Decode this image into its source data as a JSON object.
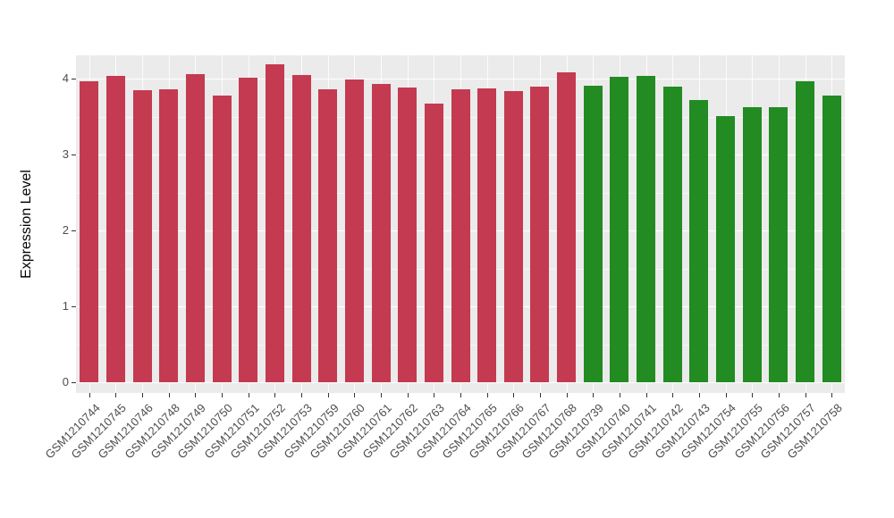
{
  "colors": {
    "red": "#C43A50",
    "green": "#228B22",
    "panel_bg": "#EBEBEB",
    "grid": "#FFFFFF",
    "tick_text": "#4D4D4D"
  },
  "chart_data": {
    "type": "bar",
    "title": "",
    "xlabel": "",
    "ylabel": "Expression Level",
    "ylim": [
      0,
      4.3
    ],
    "yticks": [
      0,
      1,
      2,
      3,
      4
    ],
    "yticks_minor": [
      0.5,
      1.5,
      2.5,
      3.5
    ],
    "grid": "on",
    "legend": "none",
    "categories": [
      "GSM1210744",
      "GSM1210745",
      "GSM1210746",
      "GSM1210748",
      "GSM1210749",
      "GSM1210750",
      "GSM1210751",
      "GSM1210752",
      "GSM1210753",
      "GSM1210759",
      "GSM1210760",
      "GSM1210761",
      "GSM1210762",
      "GSM1210763",
      "GSM1210764",
      "GSM1210765",
      "GSM1210766",
      "GSM1210767",
      "GSM1210768",
      "GSM1210739",
      "GSM1210740",
      "GSM1210741",
      "GSM1210742",
      "GSM1210743",
      "GSM1210754",
      "GSM1210755",
      "GSM1210756",
      "GSM1210757",
      "GSM1210758"
    ],
    "values": [
      3.96,
      4.04,
      3.85,
      3.86,
      4.06,
      3.78,
      4.01,
      4.19,
      4.05,
      3.86,
      3.99,
      3.93,
      3.88,
      3.67,
      3.86,
      3.87,
      3.83,
      3.89,
      4.08,
      3.91,
      4.02,
      4.04,
      3.89,
      3.72,
      3.51,
      3.62,
      3.62,
      3.96,
      3.78
    ],
    "bar_groups": [
      "red",
      "red",
      "red",
      "red",
      "red",
      "red",
      "red",
      "red",
      "red",
      "red",
      "red",
      "red",
      "red",
      "red",
      "red",
      "red",
      "red",
      "red",
      "red",
      "green",
      "green",
      "green",
      "green",
      "green",
      "green",
      "green",
      "green",
      "green",
      "green"
    ]
  }
}
